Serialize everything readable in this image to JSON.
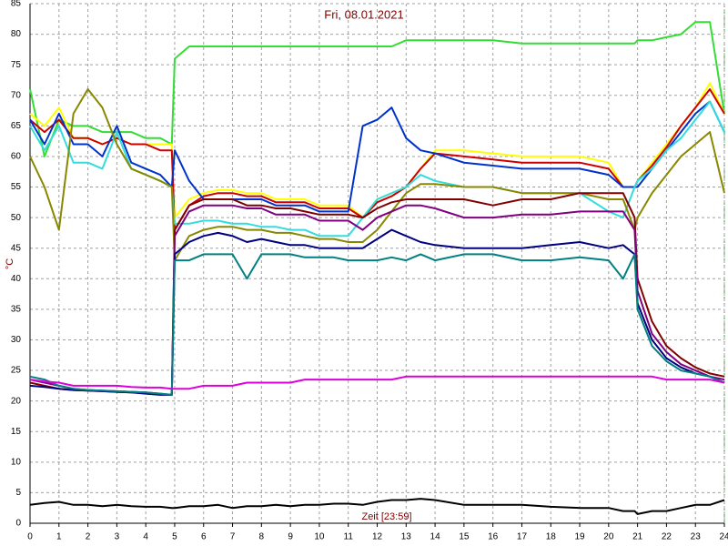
{
  "chart_data": {
    "type": "line",
    "title": "Fri, 08.01.2021",
    "y_label": "°C",
    "x_label": "Zeit [23:59]",
    "grid": true,
    "xlim": [
      0,
      24
    ],
    "ylim": [
      0,
      85
    ],
    "xticks": [
      0,
      1,
      2,
      3,
      4,
      5,
      6,
      7,
      8,
      9,
      10,
      11,
      12,
      13,
      14,
      15,
      16,
      17,
      18,
      19,
      20,
      21,
      22,
      23,
      24
    ],
    "yticks": [
      0,
      5,
      10,
      15,
      20,
      25,
      30,
      35,
      40,
      45,
      50,
      55,
      60,
      65,
      70,
      75,
      80,
      85
    ],
    "x": [
      0,
      0.5,
      1,
      1.5,
      2,
      2.5,
      3,
      3.5,
      4,
      4.5,
      4.9,
      5,
      5.5,
      6,
      6.5,
      7,
      7.5,
      8,
      8.5,
      9,
      9.5,
      10,
      10.5,
      11,
      11.5,
      12,
      12.5,
      13,
      13.5,
      14,
      15,
      16,
      17,
      18,
      19,
      20,
      20.5,
      20.9,
      21,
      21.5,
      22,
      22.5,
      23,
      23.5,
      24
    ],
    "series": [
      {
        "color": "#33dd33",
        "values": [
          71,
          60,
          66,
          65,
          65,
          64,
          64,
          64,
          63,
          63,
          62,
          76,
          78,
          78,
          78,
          78,
          78,
          78,
          78,
          78,
          78,
          78,
          78,
          78,
          78,
          78,
          78,
          79,
          79,
          79,
          79,
          79,
          78.5,
          78.5,
          78.5,
          78.5,
          78.5,
          78.5,
          79,
          79,
          79.5,
          80,
          82,
          82,
          67
        ]
      },
      {
        "color": "#ffff00",
        "values": [
          67,
          65,
          68,
          63,
          63,
          62,
          63,
          62,
          62,
          62,
          62,
          50,
          53,
          54,
          54.5,
          54.5,
          54,
          54,
          53,
          53,
          53,
          52,
          52,
          52,
          50,
          53,
          54,
          55,
          58,
          61,
          61,
          60.5,
          60,
          60,
          60,
          59,
          55,
          55,
          56,
          59,
          62,
          65,
          68,
          72,
          67
        ]
      },
      {
        "color": "#cc0000",
        "values": [
          66,
          64,
          66,
          63,
          63,
          62,
          63,
          62,
          62,
          61,
          61,
          48,
          52,
          53.5,
          54,
          54,
          53.5,
          53.5,
          52.5,
          52.5,
          52.5,
          51.5,
          51.5,
          51.5,
          50,
          52.5,
          53.5,
          55,
          58,
          60.5,
          60,
          59.5,
          59,
          59,
          59,
          58,
          55,
          55,
          56,
          58.5,
          61.5,
          65,
          68,
          71,
          67
        ]
      },
      {
        "color": "#0033cc",
        "values": [
          66,
          62,
          67,
          62,
          62,
          60,
          65,
          59,
          58,
          57,
          55,
          61,
          56,
          53,
          53,
          53,
          53,
          53,
          52,
          52,
          52,
          51,
          51,
          51,
          65,
          66,
          68,
          63,
          61,
          60.5,
          59,
          58.5,
          58,
          58,
          58,
          57,
          55,
          55,
          55,
          58,
          61,
          64,
          67,
          69,
          64
        ]
      },
      {
        "color": "#33dddd",
        "values": [
          65,
          61,
          65,
          59,
          59,
          58,
          64,
          58,
          57,
          56,
          55,
          49,
          49,
          49.5,
          49.5,
          49,
          49,
          48.5,
          48.5,
          48,
          48,
          47,
          47,
          47,
          50,
          53,
          54,
          55,
          57,
          56,
          55,
          55,
          54,
          54,
          54,
          51,
          50,
          55,
          56,
          58,
          61,
          63,
          66,
          69,
          64
        ]
      },
      {
        "color": "#888800",
        "values": [
          60,
          55,
          48,
          67,
          71,
          68,
          62,
          58,
          57,
          56,
          55,
          43,
          47,
          48,
          48.5,
          48.5,
          48,
          48,
          47.5,
          47.5,
          47,
          46.5,
          46.5,
          46,
          46,
          48,
          51,
          54,
          55.5,
          55.5,
          55,
          55,
          54,
          54,
          54,
          53,
          53,
          48,
          50,
          54,
          57,
          60,
          62,
          64,
          54
        ]
      },
      {
        "color": "#800000",
        "values": [
          23,
          22.5,
          22,
          21.8,
          21.7,
          21.6,
          21.5,
          21.4,
          21.3,
          21.1,
          21,
          48,
          52,
          53,
          53,
          53,
          52,
          52,
          51.5,
          51.5,
          51,
          50.5,
          50.5,
          50.5,
          50,
          51.5,
          52.5,
          53,
          53,
          53,
          53,
          52,
          53,
          53,
          54,
          54,
          54,
          50,
          40,
          33,
          29,
          27,
          25.5,
          24.5,
          24
        ]
      },
      {
        "color": "#800080",
        "values": [
          23.5,
          23,
          22.5,
          22,
          21.8,
          21.7,
          21.6,
          21.5,
          21.4,
          21.2,
          21,
          47,
          51,
          52,
          52,
          52,
          51.5,
          51.5,
          50.5,
          50.5,
          50.5,
          49.5,
          49.5,
          49.5,
          48,
          50,
          51,
          52,
          52,
          51.5,
          50,
          50,
          50.5,
          50.5,
          51,
          51,
          51,
          48,
          38,
          31,
          28,
          26,
          25,
          24,
          23.5
        ]
      },
      {
        "color": "#000080",
        "values": [
          22.5,
          22.3,
          22,
          21.8,
          21.7,
          21.6,
          21.5,
          21.4,
          21.2,
          21,
          21,
          44,
          46,
          47,
          47.5,
          47,
          46,
          46.5,
          46,
          45.5,
          45.5,
          45,
          45,
          45,
          45,
          46.5,
          48,
          47,
          46,
          45.5,
          45,
          45,
          45,
          45.5,
          46,
          45,
          45.5,
          44,
          36,
          30,
          27,
          25.5,
          24.5,
          24,
          23
        ]
      },
      {
        "color": "#008080",
        "values": [
          24,
          23.5,
          22.5,
          22,
          21.8,
          21.7,
          21.6,
          21.5,
          21.4,
          21.2,
          21,
          43,
          43,
          44,
          44,
          44,
          40,
          44,
          44,
          44,
          43.5,
          43.5,
          43.5,
          43,
          43,
          43,
          43.5,
          43,
          44,
          43,
          44,
          44,
          43,
          43,
          43.5,
          43,
          40,
          44,
          35,
          29,
          26.5,
          25,
          24.5,
          24,
          23
        ]
      },
      {
        "color": "#dd00dd",
        "values": [
          23.5,
          23.2,
          23,
          22.5,
          22.5,
          22.5,
          22.5,
          22.3,
          22.2,
          22.2,
          22,
          22,
          22,
          22.5,
          22.5,
          22.5,
          23,
          23,
          23,
          23,
          23.5,
          23.5,
          23.5,
          23.5,
          23.5,
          23.5,
          23.5,
          24,
          24,
          24,
          24,
          24,
          24,
          24,
          24,
          24,
          24,
          24,
          24,
          24,
          23.5,
          23.5,
          23.5,
          23.5,
          23
        ]
      },
      {
        "color": "#000000",
        "values": [
          3,
          3.3,
          3.5,
          3,
          3,
          2.8,
          3,
          2.8,
          2.7,
          2.7,
          2.5,
          2.5,
          2.8,
          2.8,
          3,
          2.5,
          2.8,
          2.8,
          3,
          2.8,
          3,
          3,
          3.2,
          3.2,
          3,
          3.5,
          3.8,
          3.8,
          4,
          3.8,
          3,
          3,
          3,
          2.7,
          2.5,
          2.5,
          2,
          2,
          1.5,
          2,
          2,
          2.5,
          3,
          3,
          3.8
        ]
      }
    ]
  }
}
